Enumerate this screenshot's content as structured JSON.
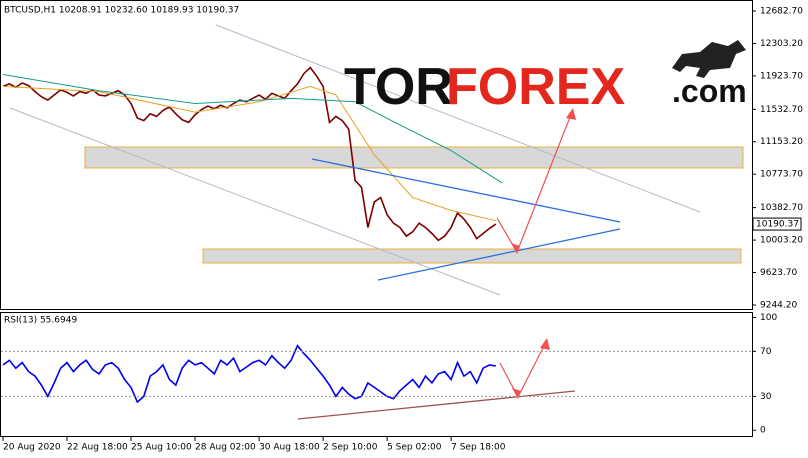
{
  "chart_data": [
    {
      "type": "line",
      "title": "BTCUSD,H1  10208.91 10232.60 10189.93 10190.37",
      "logo": [
        "TOR",
        "FOREX",
        ".com"
      ],
      "xlim": [
        0,
        117
      ],
      "ylim": [
        9197,
        12776
      ],
      "yticks": [
        {
          "value": 12682.7,
          "label": "12682.70"
        },
        {
          "value": 12303.2,
          "label": "12303.20"
        },
        {
          "value": 11923.7,
          "label": "11923.70"
        },
        {
          "value": 11532.7,
          "label": "11532.70"
        },
        {
          "value": 11153.2,
          "label": "11153.20"
        },
        {
          "value": 10773.7,
          "label": "10773.70"
        },
        {
          "value": 10382.7,
          "label": "10382.70"
        },
        {
          "value": 10003.2,
          "label": "10003.20"
        },
        {
          "value": 9623.7,
          "label": "9623.70"
        },
        {
          "value": 9244.2,
          "label": "9244.20"
        }
      ],
      "last_value_tag": true,
      "series": [
        {
          "name": "BTCUSD",
          "color": "#7a0000",
          "values": [
            11800,
            11830,
            11790,
            11840,
            11810,
            11740,
            11680,
            11640,
            11700,
            11760,
            11730,
            11690,
            11740,
            11720,
            11760,
            11700,
            11690,
            11720,
            11750,
            11700,
            11600,
            11430,
            11400,
            11480,
            11450,
            11520,
            11560,
            11480,
            11410,
            11380,
            11470,
            11530,
            11570,
            11540,
            11580,
            11550,
            11600,
            11640,
            11620,
            11660,
            11700,
            11650,
            11720,
            11690,
            11660,
            11750,
            11830,
            11950,
            12020,
            11920,
            11800,
            11380,
            11450,
            11400,
            11300,
            10700,
            10620,
            10150,
            10450,
            10500,
            10300,
            10200,
            10150,
            10050,
            10100,
            10200,
            10150,
            10080,
            10000,
            10050,
            10150,
            10320,
            10250,
            10150,
            10020,
            10080,
            10140,
            10190.37
          ]
        },
        {
          "name": "MA fast",
          "color": "#e8a020",
          "x": [
            0,
            15,
            30,
            40,
            48,
            52,
            58,
            64,
            70,
            77
          ],
          "values": [
            11800,
            11740,
            11500,
            11620,
            11800,
            11700,
            11000,
            10500,
            10350,
            10230
          ]
        },
        {
          "name": "MA slow",
          "color": "#1a9a8a",
          "x": [
            0,
            15,
            30,
            45,
            55,
            62,
            70,
            78
          ],
          "values": [
            11940,
            11750,
            11600,
            11660,
            11620,
            11350,
            11050,
            10670
          ]
        }
      ]
    },
    {
      "type": "line",
      "title": "RSI(13) 55.6949",
      "xlim": [
        0,
        117
      ],
      "ylim": [
        -6,
        104
      ],
      "yticks": [
        100,
        70,
        30,
        0
      ],
      "levels": [
        70,
        30
      ],
      "xticks": [
        {
          "value": 0,
          "label": "20 Aug 2020"
        },
        {
          "value": 10,
          "label": "22 Aug 18:00"
        },
        {
          "value": 20,
          "label": "25 Aug 10:00"
        },
        {
          "value": 30,
          "label": "28 Aug 02:00"
        },
        {
          "value": 40,
          "label": "30 Aug 18:00"
        },
        {
          "value": 50,
          "label": "2 Sep 10:00"
        },
        {
          "value": 60,
          "label": "5 Sep 02:00"
        },
        {
          "value": 70,
          "label": "7 Sep 18:00"
        }
      ],
      "series": [
        {
          "name": "RSI",
          "color": "#0000ee",
          "values": [
            58,
            62,
            55,
            60,
            52,
            48,
            40,
            30,
            42,
            55,
            60,
            52,
            58,
            62,
            54,
            50,
            58,
            60,
            55,
            45,
            38,
            25,
            30,
            48,
            52,
            58,
            45,
            40,
            55,
            62,
            58,
            60,
            55,
            50,
            62,
            58,
            64,
            52,
            56,
            60,
            62,
            58,
            66,
            60,
            55,
            62,
            75,
            68,
            62,
            55,
            48,
            40,
            30,
            38,
            32,
            28,
            30,
            42,
            38,
            34,
            30,
            28,
            35,
            40,
            45,
            38,
            48,
            42,
            50,
            52,
            45,
            60,
            48,
            52,
            42,
            55,
            58,
            57
          ]
        }
      ]
    }
  ]
}
